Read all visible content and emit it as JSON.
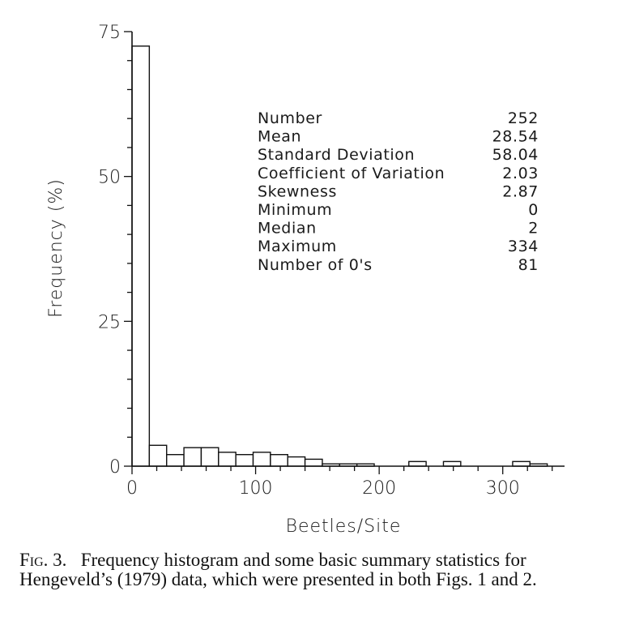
{
  "chart_data": {
    "type": "bar",
    "xlabel": "Beetles/Site",
    "ylabel": "Frequency (%)",
    "xlim": [
      0,
      350
    ],
    "ylim": [
      0,
      75
    ],
    "bin_width": 14,
    "x_ticks": [
      0,
      100,
      200,
      300
    ],
    "y_ticks": [
      0,
      25,
      50,
      75
    ],
    "bins": [
      {
        "start": 0,
        "end": 14,
        "value": 72.5
      },
      {
        "start": 14,
        "end": 28,
        "value": 3.6
      },
      {
        "start": 28,
        "end": 42,
        "value": 2.0
      },
      {
        "start": 42,
        "end": 56,
        "value": 3.2
      },
      {
        "start": 56,
        "end": 70,
        "value": 3.2
      },
      {
        "start": 70,
        "end": 84,
        "value": 2.4
      },
      {
        "start": 84,
        "end": 98,
        "value": 2.0
      },
      {
        "start": 98,
        "end": 112,
        "value": 2.4
      },
      {
        "start": 112,
        "end": 126,
        "value": 2.0
      },
      {
        "start": 126,
        "end": 140,
        "value": 1.6
      },
      {
        "start": 140,
        "end": 154,
        "value": 1.2
      },
      {
        "start": 154,
        "end": 168,
        "value": 0.4
      },
      {
        "start": 168,
        "end": 182,
        "value": 0.4
      },
      {
        "start": 182,
        "end": 196,
        "value": 0.4
      },
      {
        "start": 196,
        "end": 210,
        "value": 0.0
      },
      {
        "start": 210,
        "end": 224,
        "value": 0.0
      },
      {
        "start": 224,
        "end": 238,
        "value": 0.8
      },
      {
        "start": 238,
        "end": 252,
        "value": 0.0
      },
      {
        "start": 252,
        "end": 266,
        "value": 0.8
      },
      {
        "start": 266,
        "end": 280,
        "value": 0.0
      },
      {
        "start": 280,
        "end": 294,
        "value": 0.0
      },
      {
        "start": 294,
        "end": 308,
        "value": 0.0
      },
      {
        "start": 308,
        "end": 322,
        "value": 0.8
      },
      {
        "start": 322,
        "end": 336,
        "value": 0.4
      }
    ],
    "annotations": [
      {
        "label": "Number",
        "value": "252"
      },
      {
        "label": "Mean",
        "value": "28.54"
      },
      {
        "label": "Standard Deviation",
        "value": "58.04"
      },
      {
        "label": "Coefficient of Variation",
        "value": "2.03"
      },
      {
        "label": "Skewness",
        "value": "2.87"
      },
      {
        "label": "Minimum",
        "value": "0"
      },
      {
        "label": "Median",
        "value": "2"
      },
      {
        "label": "Maximum",
        "value": "334"
      },
      {
        "label": "Number of 0's",
        "value": "81"
      }
    ]
  },
  "caption": {
    "figure_label": "Fig. 3.",
    "text": "Frequency histogram and some basic summary statistics for Hengeveld’s (1979) data, which were presented in both Figs. 1 and 2."
  }
}
